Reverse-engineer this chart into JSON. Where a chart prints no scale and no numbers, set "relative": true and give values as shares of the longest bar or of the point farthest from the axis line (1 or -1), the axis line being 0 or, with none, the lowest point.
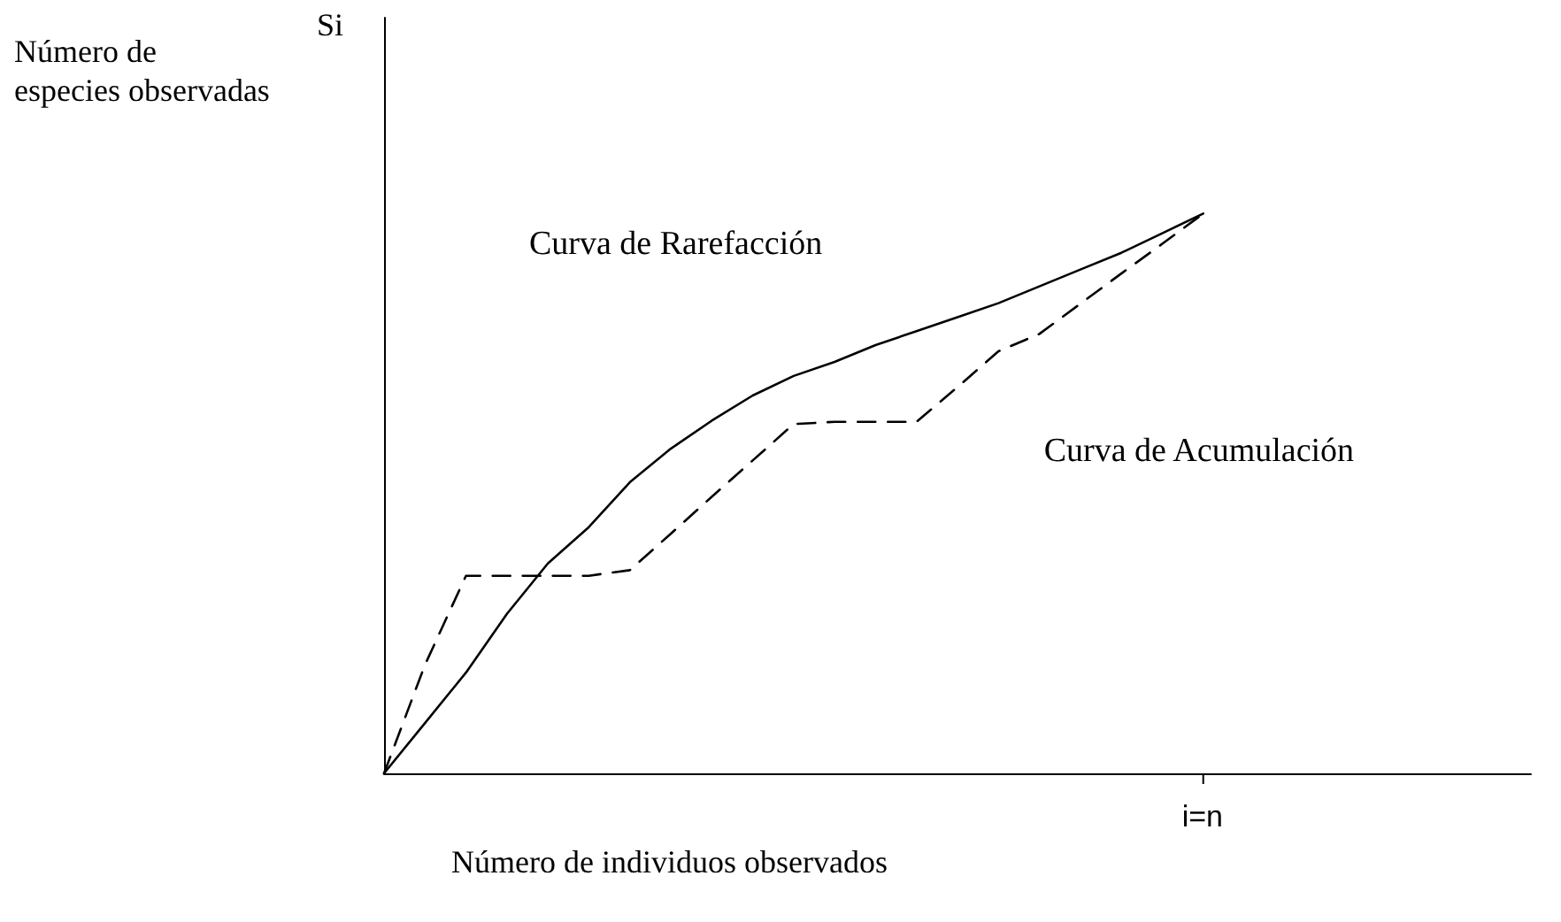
{
  "chart_data": {
    "type": "line",
    "relative": true,
    "xlabel": "Número de individuos observados",
    "ylabel": "Número de especies observadas",
    "categories": [
      null,
      null,
      null,
      null,
      null,
      null,
      null,
      null,
      null,
      null,
      null,
      null,
      null,
      null,
      null,
      null,
      null,
      null,
      null,
      null,
      null,
      null,
      null,
      null,
      null,
      null,
      null,
      null,
      null
    ],
    "series": [
      {
        "name": "Curva de Rarefacción",
        "color": "#000000",
        "line_style": "solid",
        "values": [
          0,
          0.09,
          0.18,
          0.285,
          0.375,
          0.44,
          0.52,
          0.58,
          0.63,
          0.675,
          0.71,
          0.735,
          0.765,
          0.79,
          0.815,
          0.84,
          0.87,
          0.9,
          0.93,
          0.965,
          1,
          null,
          null,
          null,
          null,
          null,
          null,
          null,
          null
        ]
      },
      {
        "name": "Curva de Acumulación",
        "color": "#000000",
        "line_style": "dashed",
        "values": [
          0,
          0.194,
          0.353,
          0.353,
          0.353,
          0.353,
          0.363,
          0.428,
          0.494,
          0.559,
          0.624,
          0.628,
          0.628,
          0.628,
          0.69,
          0.754,
          0.785,
          0.839,
          0.893,
          0.946,
          1,
          null,
          null,
          null,
          null,
          null,
          null,
          null,
          null
        ]
      }
    ],
    "annotations": [
      "Si",
      "i=n"
    ],
    "grid": false,
    "legend": false,
    "marker": "none"
  }
}
